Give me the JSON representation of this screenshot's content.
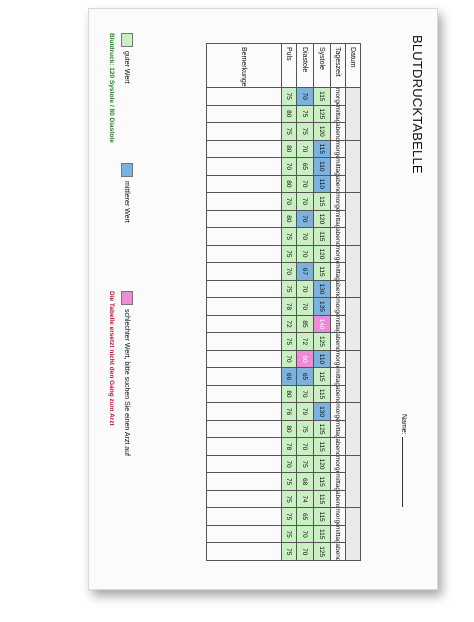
{
  "document": {
    "title": "BLUTDRUCKTABELLE",
    "name_label": "Name:"
  },
  "row_labels": {
    "date": "Datum",
    "time": "Tageszeit",
    "systole": "Systole",
    "diastole": "Diastole",
    "pulse": "Puls",
    "remarks": "Bemerkungen"
  },
  "days": [
    {
      "times": [
        "morgens",
        "mittags",
        "abends"
      ],
      "systole": [
        "115",
        "125",
        "120"
      ],
      "diastole": [
        "70",
        "75",
        "75"
      ],
      "pulse": [
        "75",
        "80",
        "75"
      ]
    },
    {
      "times": [
        "morgens",
        "mittags",
        "abends"
      ],
      "systole": [
        "115",
        "110",
        "110"
      ],
      "diastole": [
        "70",
        "65",
        "70"
      ],
      "pulse": [
        "80",
        "70",
        "80"
      ]
    },
    {
      "times": [
        "morgens",
        "mittags",
        "abends"
      ],
      "systole": [
        "115",
        "120",
        "115"
      ],
      "diastole": [
        "70",
        "70",
        "70"
      ],
      "pulse": [
        "70",
        "80",
        "75"
      ]
    },
    {
      "times": [
        "morgens",
        "mittags",
        "abends"
      ],
      "systole": [
        "120",
        "115",
        "130"
      ],
      "diastole": [
        "70",
        "67",
        "70"
      ],
      "pulse": [
        "75",
        "70",
        "75"
      ]
    },
    {
      "times": [
        "morgens",
        "mittags",
        "abends"
      ],
      "systole": [
        "135",
        "140",
        "125"
      ],
      "diastole": [
        "70",
        "85",
        "72"
      ],
      "pulse": [
        "78",
        "72",
        "75"
      ]
    },
    {
      "times": [
        "morgens",
        "mittags",
        "abends"
      ],
      "systole": [
        "110",
        "115",
        "115"
      ],
      "diastole": [
        "60",
        "65",
        "70"
      ],
      "pulse": [
        "70",
        "66",
        "80"
      ]
    },
    {
      "times": [
        "morgens",
        "mittags",
        "abends"
      ],
      "systole": [
        "130",
        "125",
        "115"
      ],
      "diastole": [
        "79",
        "75",
        "70"
      ],
      "pulse": [
        "76",
        "80",
        "78"
      ]
    },
    {
      "times": [
        "morgens",
        "mittags",
        "abends"
      ],
      "systole": [
        "120",
        "115",
        "115"
      ],
      "diastole": [
        "75",
        "68",
        "74"
      ],
      "pulse": [
        "70",
        "75",
        "75"
      ]
    },
    {
      "times": [
        "morgens",
        "mittags",
        "abends"
      ],
      "systole": [
        "115",
        "115",
        "125"
      ],
      "diastole": [
        "65",
        "70",
        "70"
      ],
      "pulse": [
        "75",
        "75",
        "75"
      ]
    }
  ],
  "colors": {
    "good": "#c9efc2",
    "medium": "#7bb2de",
    "bad": "#ee8ad6"
  },
  "legend": {
    "good": "guter Wert",
    "medium": "mittlerer Wert",
    "bad": "schlechter Wert, bitte suchen Sie einen Arzt auf",
    "note1": "Blutdruck: 120 Systole / 80 Diastole",
    "note2": "Die Tabelle ersetzt nicht den Gang zum Arzt"
  }
}
